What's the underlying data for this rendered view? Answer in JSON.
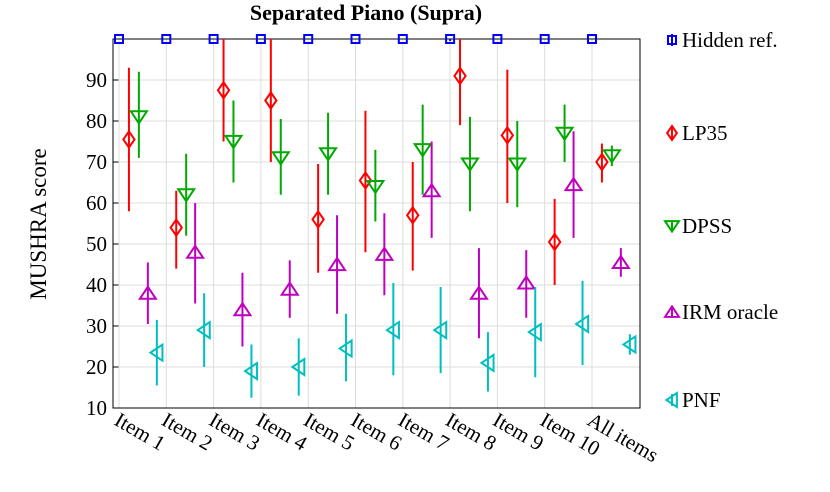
{
  "chart_data": {
    "type": "errorbar",
    "title": "Separated Piano (Supra)",
    "y_label": "MUSHRA score",
    "categories": [
      "Item 1",
      "Item 2",
      "Item 3",
      "Item 4",
      "Item 5",
      "Item 6",
      "Item 7",
      "Item 8",
      "Item 9",
      "Item 10",
      "All items"
    ],
    "ylim": [
      10,
      100
    ],
    "yticks": [
      10,
      20,
      30,
      40,
      50,
      60,
      70,
      80,
      90
    ],
    "grid": true,
    "series": [
      {
        "name": "Hidden ref.",
        "color": "#0000ff",
        "marker": "square",
        "values": [
          100,
          100,
          100,
          100,
          100,
          100,
          100,
          100,
          100,
          100,
          100
        ],
        "lower": [
          100,
          100,
          100,
          100,
          100,
          100,
          100,
          99.5,
          100,
          100,
          100
        ],
        "upper": [
          100,
          100,
          100,
          100,
          100,
          100,
          100,
          100,
          100,
          100,
          100
        ]
      },
      {
        "name": "LP35",
        "color": "#ff0000",
        "marker": "diamond",
        "values": [
          75.5,
          54,
          87.5,
          85,
          56,
          65.5,
          57,
          91,
          76.5,
          50.5,
          70
        ],
        "lower": [
          58,
          44,
          75,
          70,
          43,
          48,
          43.5,
          79,
          60,
          40,
          65
        ],
        "upper": [
          93,
          63,
          100,
          100,
          69.5,
          82.5,
          70,
          100,
          92.5,
          61,
          74.5
        ]
      },
      {
        "name": "DPSS",
        "color": "#00aa00",
        "marker": "triangle-down",
        "values": [
          81,
          62,
          75,
          71,
          72,
          64,
          73,
          69.5,
          69.5,
          77,
          71.5
        ],
        "lower": [
          71,
          52,
          65,
          62,
          62,
          55.5,
          62,
          58,
          59,
          70,
          69
        ],
        "upper": [
          92,
          72,
          85,
          80.5,
          82,
          73,
          84,
          81,
          80,
          84,
          74
        ]
      },
      {
        "name": "IRM oracle",
        "color": "#bf00bf",
        "marker": "triangle-up",
        "values": [
          38,
          48,
          34,
          39,
          45,
          47.5,
          63,
          38,
          40.5,
          64.5,
          45.5
        ],
        "lower": [
          30.5,
          35.5,
          25,
          32,
          33,
          37.5,
          51.5,
          27,
          32,
          51.5,
          42
        ],
        "upper": [
          45.5,
          60,
          43,
          46,
          57,
          57.5,
          75,
          49,
          48.5,
          77.5,
          49
        ]
      },
      {
        "name": "PNF",
        "color": "#00bfbf",
        "marker": "triangle-left",
        "values": [
          23.5,
          29,
          19,
          20,
          24.5,
          29,
          29,
          21,
          28.5,
          30.5,
          25.5
        ],
        "lower": [
          15.5,
          20,
          12.5,
          13,
          16.5,
          18,
          18.5,
          14,
          17.5,
          20.5,
          23
        ],
        "upper": [
          31.5,
          38,
          25.5,
          27,
          33,
          40.5,
          39.5,
          28.5,
          39.5,
          41,
          28
        ]
      }
    ]
  }
}
